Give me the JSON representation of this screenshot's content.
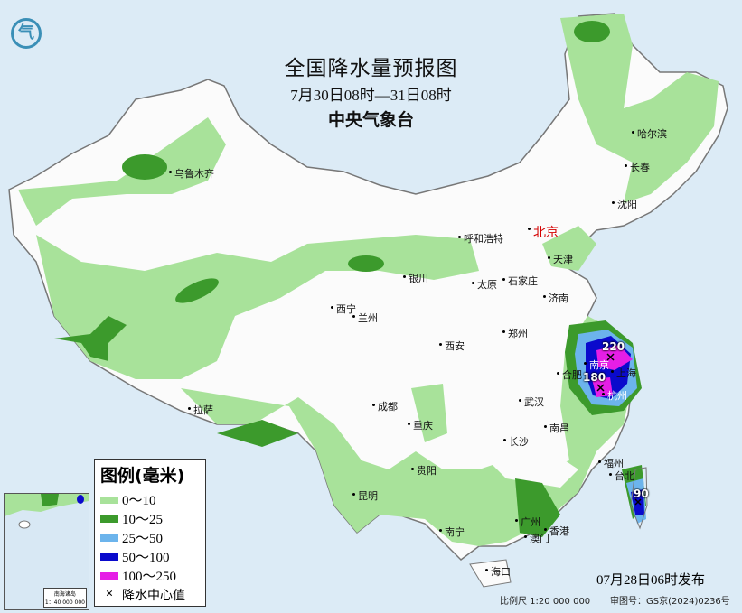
{
  "header": {
    "title": "全国降水量预报图",
    "period": "7月30日08时—31日08时",
    "issuer": "中央气象台"
  },
  "legend": {
    "title": "图例(毫米)",
    "items": [
      {
        "label": "0～10",
        "color": "#a8e29a"
      },
      {
        "label": "10～25",
        "color": "#3c9a2c"
      },
      {
        "label": "25～50",
        "color": "#6cb4ec"
      },
      {
        "label": "50～100",
        "color": "#0a0acc"
      },
      {
        "label": "100～250",
        "color": "#e61ee6"
      }
    ],
    "center_marker": {
      "symbol": "×",
      "label": "降水中心值"
    }
  },
  "cities": [
    {
      "name": "北京",
      "capital": true
    },
    {
      "name": "乌鲁木齐"
    },
    {
      "name": "哈尔滨"
    },
    {
      "name": "长春"
    },
    {
      "name": "沈阳"
    },
    {
      "name": "呼和浩特"
    },
    {
      "name": "天津"
    },
    {
      "name": "石家庄"
    },
    {
      "name": "太原"
    },
    {
      "name": "银川"
    },
    {
      "name": "济南"
    },
    {
      "name": "西宁"
    },
    {
      "name": "兰州"
    },
    {
      "name": "郑州"
    },
    {
      "name": "西安"
    },
    {
      "name": "合肥"
    },
    {
      "name": "南京"
    },
    {
      "name": "上海"
    },
    {
      "name": "杭州"
    },
    {
      "name": "武汉"
    },
    {
      "name": "成都"
    },
    {
      "name": "重庆"
    },
    {
      "name": "长沙"
    },
    {
      "name": "南昌"
    },
    {
      "name": "拉萨"
    },
    {
      "name": "福州"
    },
    {
      "name": "台北"
    },
    {
      "name": "贵阳"
    },
    {
      "name": "昆明"
    },
    {
      "name": "南宁"
    },
    {
      "name": "广州"
    },
    {
      "name": "澳门"
    },
    {
      "name": "香港"
    },
    {
      "name": "海口"
    }
  ],
  "precip_centers": [
    "220",
    "180",
    "90"
  ],
  "inset": {
    "title": "南海诸岛",
    "scale": "1：40 000 000"
  },
  "footer": {
    "published": "07月28日06时发布",
    "scale": "比例尺 1:20 000 000",
    "review_no": "审图号：GS京(2024)0236号"
  }
}
